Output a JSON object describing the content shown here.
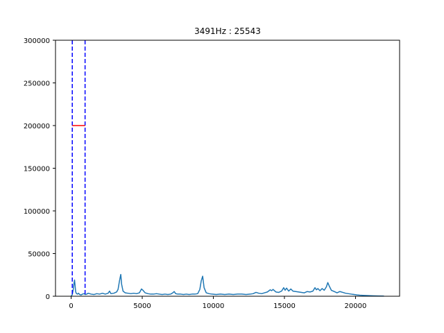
{
  "chart_data": {
    "type": "line",
    "title": "3491Hz : 25543",
    "xlabel": "",
    "ylabel": "",
    "xlim": [
      -1100,
      23100
    ],
    "ylim": [
      0,
      300000
    ],
    "xticks": [
      0,
      5000,
      10000,
      15000,
      20000
    ],
    "yticks": [
      0,
      50000,
      100000,
      150000,
      200000,
      250000,
      300000
    ],
    "xtick_labels": [
      "0",
      "5000",
      "10000",
      "15000",
      "20000"
    ],
    "ytick_labels": [
      "0",
      "50000",
      "100000",
      "150000",
      "200000",
      "250000",
      "300000"
    ],
    "grid": false,
    "series": [
      {
        "color": "#1f77b4",
        "x": [
          0,
          80,
          150,
          200,
          240,
          280,
          320,
          380,
          450,
          520,
          600,
          700,
          800,
          900,
          1000,
          1100,
          1200,
          1400,
          1600,
          1800,
          2000,
          2200,
          2400,
          2600,
          2700,
          2800,
          3000,
          3200,
          3300,
          3400,
          3491,
          3550,
          3650,
          3800,
          4000,
          4200,
          4400,
          4600,
          4800,
          4950,
          5050,
          5200,
          5400,
          5600,
          5800,
          6000,
          6200,
          6400,
          6600,
          6800,
          7000,
          7150,
          7250,
          7350,
          7500,
          7700,
          7900,
          8100,
          8300,
          8500,
          8700,
          8900,
          9050,
          9150,
          9250,
          9350,
          9500,
          9700,
          9900,
          10200,
          10500,
          10800,
          11100,
          11400,
          11700,
          12000,
          12300,
          12600,
          12800,
          13000,
          13200,
          13400,
          13600,
          13800,
          14000,
          14100,
          14200,
          14400,
          14600,
          14800,
          14950,
          15050,
          15150,
          15300,
          15450,
          15600,
          15800,
          16000,
          16200,
          16400,
          16600,
          16800,
          17000,
          17150,
          17250,
          17350,
          17500,
          17650,
          17800,
          17950,
          18050,
          18150,
          18300,
          18500,
          18700,
          18900,
          19100,
          19300,
          19500,
          19700,
          19900,
          20100,
          20300,
          20500,
          20800,
          21200,
          21600,
          22000
        ],
        "y": [
          0,
          2000,
          8000,
          15000,
          19000,
          12000,
          5000,
          3000,
          2500,
          3500,
          2000,
          1500,
          2500,
          3000,
          2000,
          2500,
          3500,
          2500,
          2000,
          3000,
          2500,
          3500,
          2500,
          3500,
          6000,
          3000,
          3500,
          5000,
          8000,
          18000,
          25543,
          14000,
          6000,
          4000,
          3500,
          3000,
          3500,
          3000,
          4000,
          8500,
          7000,
          4000,
          3000,
          2500,
          2500,
          3000,
          2500,
          2000,
          2500,
          2000,
          2500,
          4000,
          5500,
          3000,
          2500,
          2500,
          2000,
          2500,
          2000,
          2500,
          2500,
          3000,
          8000,
          18000,
          23500,
          10000,
          4000,
          3000,
          2500,
          2000,
          2500,
          2000,
          2500,
          2000,
          2500,
          2500,
          2000,
          2500,
          3000,
          4500,
          3500,
          3000,
          4000,
          5000,
          7500,
          6500,
          8000,
          5000,
          4500,
          6000,
          10000,
          7000,
          9500,
          6000,
          8500,
          6000,
          5500,
          5000,
          4500,
          4000,
          5500,
          5000,
          6000,
          10000,
          7500,
          9000,
          6500,
          9000,
          7000,
          11000,
          16000,
          12000,
          7000,
          5500,
          4000,
          5500,
          4500,
          3500,
          3000,
          2500,
          2000,
          1500,
          1200,
          1000,
          800,
          500,
          300,
          200
        ]
      }
    ],
    "vertical_lines": [
      {
        "x": 80,
        "color": "#0000ff",
        "style": "dashed"
      },
      {
        "x": 980,
        "color": "#0000ff",
        "style": "dashed"
      }
    ],
    "horizontal_segments": [
      {
        "x_start": 80,
        "x_end": 980,
        "y": 200000,
        "color": "#ff0000"
      }
    ]
  }
}
